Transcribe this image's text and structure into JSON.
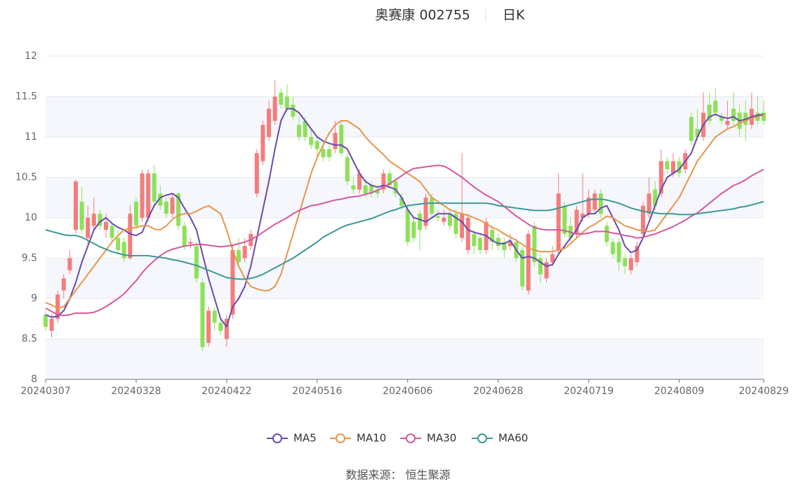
{
  "chart_data": {
    "type": "candlestick",
    "title": "奥赛康 002755",
    "subtitle": "日K",
    "source": "数据来源： 恒生聚源",
    "up_color": "#f47c7c",
    "down_color": "#8de159",
    "grid": true,
    "ylim": [
      8,
      12
    ],
    "yticks": [
      8,
      8.5,
      9,
      9.5,
      10,
      10.5,
      11,
      11.5,
      12
    ],
    "categories": [
      "20240307",
      null,
      null,
      null,
      null,
      null,
      null,
      null,
      null,
      null,
      null,
      null,
      null,
      null,
      null,
      "20240328",
      null,
      null,
      null,
      null,
      null,
      null,
      null,
      null,
      null,
      null,
      null,
      null,
      null,
      null,
      "20240422",
      null,
      null,
      null,
      null,
      null,
      null,
      null,
      null,
      null,
      null,
      null,
      null,
      null,
      null,
      "20240516",
      null,
      null,
      null,
      null,
      null,
      null,
      null,
      null,
      null,
      null,
      null,
      null,
      null,
      null,
      "20240606",
      null,
      null,
      null,
      null,
      null,
      null,
      null,
      null,
      null,
      null,
      null,
      null,
      null,
      null,
      "20240628",
      null,
      null,
      null,
      null,
      null,
      null,
      null,
      null,
      null,
      null,
      null,
      null,
      null,
      null,
      "20240719",
      null,
      null,
      null,
      null,
      null,
      null,
      null,
      null,
      null,
      null,
      null,
      null,
      null,
      null,
      "20240809",
      null,
      null,
      null,
      null,
      null,
      null,
      null,
      null,
      null,
      null,
      null,
      null,
      null,
      "20240829"
    ],
    "candles": [
      [
        8.8,
        8.65,
        8.6,
        8.85
      ],
      [
        8.6,
        8.75,
        8.52,
        8.8
      ],
      [
        8.75,
        9.05,
        8.7,
        9.1
      ],
      [
        9.1,
        9.25,
        9.0,
        9.3
      ],
      [
        9.35,
        9.5,
        9.3,
        9.6
      ],
      [
        9.85,
        10.45,
        9.8,
        10.47
      ],
      [
        10.2,
        9.85,
        9.8,
        10.38
      ],
      [
        9.75,
        10.0,
        9.65,
        10.15
      ],
      [
        9.9,
        10.05,
        9.85,
        10.25
      ],
      [
        10.05,
        9.9,
        9.85,
        10.1
      ],
      [
        9.85,
        9.95,
        9.75,
        10.05
      ],
      [
        9.9,
        9.75,
        9.7,
        9.95
      ],
      [
        9.75,
        9.6,
        9.55,
        9.85
      ],
      [
        9.7,
        9.5,
        9.45,
        9.75
      ],
      [
        9.5,
        10.05,
        9.48,
        10.15
      ],
      [
        10.2,
        9.9,
        9.85,
        10.25
      ],
      [
        10.0,
        10.55,
        9.95,
        10.6
      ],
      [
        10.0,
        10.55,
        9.95,
        10.6
      ],
      [
        10.55,
        10.2,
        10.15,
        10.65
      ],
      [
        10.3,
        10.15,
        10.1,
        10.4
      ],
      [
        10.2,
        10.05,
        10.0,
        10.25
      ],
      [
        10.05,
        10.25,
        10.0,
        10.3
      ],
      [
        10.3,
        9.9,
        9.85,
        10.32
      ],
      [
        9.9,
        9.65,
        9.6,
        9.95
      ],
      [
        9.68,
        9.7,
        9.62,
        9.75
      ],
      [
        9.65,
        9.25,
        9.2,
        9.7
      ],
      [
        9.2,
        8.4,
        8.35,
        9.25
      ],
      [
        8.45,
        8.85,
        8.4,
        8.9
      ],
      [
        8.85,
        8.7,
        8.6,
        8.9
      ],
      [
        8.7,
        8.6,
        8.55,
        8.75
      ],
      [
        8.5,
        8.75,
        8.4,
        8.8
      ],
      [
        8.8,
        9.6,
        8.75,
        9.65
      ],
      [
        9.6,
        9.45,
        9.4,
        9.75
      ],
      [
        9.5,
        9.65,
        9.45,
        9.75
      ],
      [
        9.65,
        9.8,
        9.6,
        9.85
      ],
      [
        10.3,
        10.8,
        10.25,
        10.85
      ],
      [
        10.7,
        11.15,
        10.65,
        11.2
      ],
      [
        11.0,
        11.35,
        10.95,
        11.45
      ],
      [
        11.2,
        11.5,
        11.15,
        11.7
      ],
      [
        11.55,
        11.4,
        11.35,
        11.6
      ],
      [
        11.5,
        11.35,
        11.3,
        11.65
      ],
      [
        11.4,
        11.25,
        11.2,
        11.5
      ],
      [
        11.15,
        11.0,
        10.95,
        11.25
      ],
      [
        11.2,
        11.0,
        10.95,
        11.25
      ],
      [
        11.0,
        10.9,
        10.85,
        11.1
      ],
      [
        10.95,
        10.85,
        10.75,
        11.0
      ],
      [
        10.85,
        10.75,
        10.7,
        10.95
      ],
      [
        10.85,
        10.75,
        10.7,
        10.9
      ],
      [
        10.85,
        11.05,
        10.8,
        11.2
      ],
      [
        11.15,
        10.8,
        10.75,
        11.2
      ],
      [
        10.75,
        10.45,
        10.4,
        10.8
      ],
      [
        10.4,
        10.35,
        10.3,
        10.5
      ],
      [
        10.35,
        10.55,
        10.3,
        10.6
      ],
      [
        10.4,
        10.3,
        10.25,
        10.45
      ],
      [
        10.4,
        10.3,
        10.25,
        10.45
      ],
      [
        10.35,
        10.3,
        10.25,
        10.4
      ],
      [
        10.35,
        10.55,
        10.3,
        10.6
      ],
      [
        10.55,
        10.4,
        10.35,
        10.6
      ],
      [
        10.45,
        10.3,
        10.25,
        10.5
      ],
      [
        10.25,
        10.15,
        10.1,
        10.3
      ],
      [
        10.1,
        9.7,
        9.65,
        10.15
      ],
      [
        9.95,
        9.75,
        9.7,
        10.0
      ],
      [
        10.05,
        9.85,
        9.6,
        10.1
      ],
      [
        9.9,
        10.25,
        9.85,
        10.3
      ],
      [
        10.25,
        10.05,
        10.0,
        10.3
      ],
      [
        10.02,
        10.0,
        9.95,
        10.1
      ],
      [
        9.95,
        10.0,
        9.9,
        10.1
      ],
      [
        10.05,
        9.9,
        9.85,
        10.1
      ],
      [
        10.05,
        9.8,
        9.75,
        10.1
      ],
      [
        9.75,
        10.05,
        9.7,
        10.8
      ],
      [
        9.6,
        10.0,
        9.55,
        10.05
      ],
      [
        9.8,
        9.65,
        9.55,
        9.85
      ],
      [
        9.75,
        9.6,
        9.55,
        9.8
      ],
      [
        9.6,
        9.95,
        9.55,
        10.0
      ],
      [
        9.85,
        9.7,
        9.6,
        9.9
      ],
      [
        9.75,
        9.65,
        9.6,
        9.8
      ],
      [
        9.7,
        9.6,
        9.5,
        9.75
      ],
      [
        9.65,
        9.7,
        9.6,
        9.8
      ],
      [
        9.7,
        9.5,
        9.45,
        9.75
      ],
      [
        9.6,
        9.15,
        9.1,
        9.65
      ],
      [
        9.1,
        9.8,
        9.05,
        9.85
      ],
      [
        9.9,
        9.45,
        9.4,
        9.95
      ],
      [
        9.5,
        9.3,
        9.2,
        9.55
      ],
      [
        9.25,
        9.45,
        9.2,
        9.5
      ],
      [
        9.45,
        9.55,
        9.4,
        9.65
      ],
      [
        9.6,
        10.3,
        9.55,
        10.55
      ],
      [
        10.15,
        9.8,
        9.75,
        10.2
      ],
      [
        9.9,
        9.75,
        9.7,
        10.0
      ],
      [
        9.8,
        10.1,
        9.75,
        10.15
      ],
      [
        10.0,
        10.05,
        9.95,
        10.55
      ],
      [
        10.05,
        10.25,
        10.0,
        10.35
      ],
      [
        10.1,
        10.3,
        10.05,
        10.35
      ],
      [
        10.3,
        10.05,
        10.0,
        10.35
      ],
      [
        9.9,
        9.7,
        9.65,
        9.95
      ],
      [
        9.7,
        9.55,
        9.5,
        9.75
      ],
      [
        9.7,
        9.45,
        9.35,
        9.75
      ],
      [
        9.5,
        9.4,
        9.3,
        9.55
      ],
      [
        9.35,
        9.5,
        9.3,
        9.55
      ],
      [
        9.45,
        9.65,
        9.4,
        9.7
      ],
      [
        9.8,
        10.15,
        9.75,
        10.2
      ],
      [
        10.05,
        10.3,
        10.0,
        10.5
      ],
      [
        10.35,
        10.15,
        10.1,
        10.45
      ],
      [
        10.3,
        10.7,
        10.25,
        10.85
      ],
      [
        10.7,
        10.6,
        10.55,
        10.75
      ],
      [
        10.55,
        10.7,
        10.5,
        10.8
      ],
      [
        10.7,
        10.55,
        10.5,
        10.75
      ],
      [
        10.6,
        10.8,
        10.55,
        10.85
      ],
      [
        11.25,
        10.95,
        10.9,
        11.3
      ],
      [
        11.1,
        11.0,
        10.95,
        11.35
      ],
      [
        11.0,
        11.3,
        10.95,
        11.55
      ],
      [
        11.4,
        11.2,
        11.15,
        11.55
      ],
      [
        11.45,
        11.3,
        11.25,
        11.6
      ],
      [
        11.25,
        11.2,
        11.15,
        11.3
      ],
      [
        11.15,
        11.2,
        11.1,
        11.45
      ],
      [
        11.35,
        11.2,
        11.15,
        11.55
      ],
      [
        11.3,
        11.1,
        11.0,
        11.4
      ],
      [
        11.3,
        11.15,
        10.95,
        11.45
      ],
      [
        11.15,
        11.35,
        11.1,
        11.55
      ],
      [
        11.3,
        11.2,
        11.15,
        11.5
      ],
      [
        11.3,
        11.2,
        11.15,
        11.45
      ]
    ],
    "series": [
      {
        "name": "MA5",
        "color": "#6a4aae",
        "values": [
          8.8,
          8.77,
          8.78,
          8.85,
          9.0,
          9.2,
          9.45,
          9.65,
          9.85,
          9.95,
          10.0,
          9.93,
          9.88,
          9.85,
          9.8,
          9.78,
          9.82,
          10.0,
          10.15,
          10.25,
          10.28,
          10.3,
          10.25,
          10.12,
          10.0,
          9.85,
          9.55,
          9.25,
          9.0,
          8.75,
          8.65,
          8.9,
          9.0,
          9.15,
          9.4,
          9.75,
          10.1,
          10.45,
          10.85,
          11.2,
          11.35,
          11.35,
          11.3,
          11.2,
          11.1,
          11.0,
          10.95,
          10.92,
          10.9,
          10.9,
          10.85,
          10.7,
          10.55,
          10.45,
          10.4,
          10.38,
          10.4,
          10.38,
          10.35,
          10.25,
          10.1,
          10.0,
          9.98,
          9.95,
          10.0,
          10.05,
          10.05,
          10.05,
          10.0,
          9.95,
          9.85,
          9.82,
          9.8,
          9.78,
          9.72,
          9.68,
          9.68,
          9.72,
          9.6,
          9.5,
          9.52,
          9.5,
          9.45,
          9.4,
          9.42,
          9.55,
          9.65,
          9.75,
          9.85,
          10.0,
          10.05,
          10.05,
          10.12,
          10.15,
          10.0,
          9.85,
          9.65,
          9.57,
          9.6,
          9.75,
          9.95,
          10.15,
          10.35,
          10.5,
          10.55,
          10.6,
          10.7,
          10.8,
          11.0,
          11.15,
          11.25,
          11.28,
          11.25,
          11.23,
          11.25,
          11.2,
          11.22,
          11.25,
          11.27,
          11.28
        ]
      },
      {
        "name": "MA10",
        "color": "#e8954d",
        "values": [
          8.95,
          8.92,
          8.88,
          8.9,
          9.0,
          9.1,
          9.2,
          9.3,
          9.4,
          9.5,
          9.6,
          9.7,
          9.78,
          9.85,
          9.87,
          9.88,
          9.9,
          9.9,
          9.86,
          9.85,
          9.9,
          9.98,
          10.03,
          10.05,
          10.05,
          10.08,
          10.12,
          10.15,
          10.1,
          10.05,
          9.85,
          9.6,
          9.4,
          9.25,
          9.15,
          9.12,
          9.1,
          9.1,
          9.15,
          9.3,
          9.55,
          9.8,
          10.05,
          10.3,
          10.55,
          10.75,
          10.9,
          11.05,
          11.15,
          11.2,
          11.2,
          11.15,
          11.1,
          11.0,
          10.92,
          10.85,
          10.78,
          10.7,
          10.65,
          10.6,
          10.55,
          10.5,
          10.45,
          10.35,
          10.25,
          10.2,
          10.15,
          10.1,
          10.07,
          10.05,
          10.03,
          10.0,
          9.97,
          9.93,
          9.88,
          9.85,
          9.8,
          9.76,
          9.72,
          9.67,
          9.62,
          9.6,
          9.58,
          9.58,
          9.58,
          9.6,
          9.62,
          9.68,
          9.75,
          9.82,
          9.88,
          9.92,
          9.97,
          10.02,
          10.0,
          9.95,
          9.9,
          9.88,
          9.85,
          9.84,
          9.83,
          9.85,
          9.95,
          10.05,
          10.15,
          10.25,
          10.4,
          10.55,
          10.7,
          10.8,
          10.9,
          11.0,
          11.05,
          11.1,
          11.13,
          11.17,
          11.2,
          11.23,
          11.25,
          11.27
        ]
      },
      {
        "name": "MA30",
        "color": "#d4589f",
        "values": [
          8.88,
          8.84,
          8.8,
          8.79,
          8.8,
          8.82,
          8.82,
          8.82,
          8.83,
          8.86,
          8.9,
          8.95,
          9.0,
          9.06,
          9.14,
          9.22,
          9.32,
          9.4,
          9.47,
          9.53,
          9.58,
          9.61,
          9.63,
          9.65,
          9.66,
          9.67,
          9.67,
          9.66,
          9.65,
          9.64,
          9.65,
          9.66,
          9.68,
          9.7,
          9.73,
          9.77,
          9.82,
          9.87,
          9.92,
          9.96,
          10.0,
          10.05,
          10.09,
          10.12,
          10.15,
          10.16,
          10.18,
          10.2,
          10.22,
          10.23,
          10.25,
          10.26,
          10.27,
          10.29,
          10.31,
          10.34,
          10.38,
          10.42,
          10.47,
          10.52,
          10.57,
          10.61,
          10.62,
          10.63,
          10.64,
          10.65,
          10.64,
          10.6,
          10.55,
          10.5,
          10.44,
          10.38,
          10.33,
          10.28,
          10.24,
          10.2,
          10.14,
          10.08,
          10.02,
          9.97,
          9.92,
          9.88,
          9.86,
          9.85,
          9.85,
          9.85,
          9.84,
          9.82,
          9.8,
          9.8,
          9.81,
          9.83,
          9.83,
          9.83,
          9.81,
          9.8,
          9.78,
          9.77,
          9.75,
          9.76,
          9.78,
          9.8,
          9.83,
          9.86,
          9.89,
          9.93,
          9.97,
          10.02,
          10.06,
          10.12,
          10.18,
          10.24,
          10.3,
          10.35,
          10.4,
          10.43,
          10.47,
          10.52,
          10.56,
          10.6
        ]
      },
      {
        "name": "MA60",
        "color": "#3e9896",
        "values": [
          9.85,
          9.83,
          9.81,
          9.79,
          9.78,
          9.78,
          9.76,
          9.72,
          9.68,
          9.64,
          9.61,
          9.58,
          9.56,
          9.54,
          9.53,
          9.53,
          9.53,
          9.53,
          9.52,
          9.51,
          9.5,
          9.48,
          9.47,
          9.45,
          9.43,
          9.41,
          9.38,
          9.35,
          9.32,
          9.29,
          9.26,
          9.25,
          9.24,
          9.24,
          9.25,
          9.27,
          9.3,
          9.34,
          9.38,
          9.42,
          9.46,
          9.5,
          9.55,
          9.6,
          9.65,
          9.7,
          9.76,
          9.8,
          9.84,
          9.88,
          9.91,
          9.93,
          9.95,
          9.97,
          9.99,
          10.02,
          10.05,
          10.08,
          10.1,
          10.13,
          10.15,
          10.16,
          10.17,
          10.18,
          10.18,
          10.18,
          10.18,
          10.18,
          10.18,
          10.18,
          10.18,
          10.18,
          10.18,
          10.18,
          10.17,
          10.15,
          10.14,
          10.13,
          10.12,
          10.11,
          10.1,
          10.09,
          10.09,
          10.09,
          10.1,
          10.12,
          10.14,
          10.16,
          10.18,
          10.2,
          10.22,
          10.23,
          10.23,
          10.22,
          10.2,
          10.18,
          10.15,
          10.12,
          10.1,
          10.08,
          10.07,
          10.06,
          10.05,
          10.05,
          10.05,
          10.04,
          10.04,
          10.04,
          10.05,
          10.06,
          10.07,
          10.08,
          10.09,
          10.1,
          10.11,
          10.13,
          10.14,
          10.16,
          10.18,
          10.2
        ]
      }
    ]
  }
}
